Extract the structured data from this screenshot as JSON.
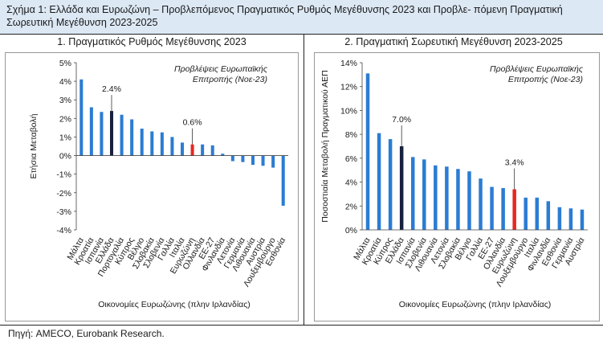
{
  "figure": {
    "title": "Σχήμα 1: Ελλάδα και Ευρωζώνη – Προβλεπόμενος Πραγματικός Ρυθμός Μεγέθυνσης 2023 και Προβλε- πόμενη Πραγματική Σωρευτική Μεγέθυνση 2023-2025",
    "source": "Πηγή: AMECO, Eurobank Research."
  },
  "colors": {
    "bar": "#2b7cd3",
    "greece": "#16213e",
    "eurozone": "#e8261e",
    "header_bg": "#dce8f4"
  },
  "chart_data": [
    {
      "type": "bar",
      "title": "1. Πραγματικός Ρυθμός Μεγέθυνσης 2023",
      "xlabel": "Οικονομίες Ευρωζώνης (πλην Ιρλανδίας)",
      "ylabel": "Ετήσια Μεταβολή",
      "note": "Προβλέψεις Ευρωπαϊκής Επιτροπής (Νοε-23)",
      "ylim": [
        -4,
        5
      ],
      "yticks": [
        5,
        4,
        3,
        2,
        1,
        0,
        -1,
        -2,
        -3,
        -4
      ],
      "ytick_labels": [
        "5%",
        "4%",
        "3%",
        "2%",
        "1%",
        "0%",
        "-1%",
        "-2%",
        "-3%",
        "-4%"
      ],
      "categories": [
        "Μάλτα",
        "Κροατία",
        "Ισπανία",
        "Ελλάδα",
        "Πορτογαλία",
        "Κύπρος",
        "Βέλγιο",
        "Σλοβακία",
        "Σλοβενία",
        "Γαλλία",
        "Ιταλία",
        "Ευρωζώνη",
        "Ολλανδία",
        "ΕΕ-27",
        "Φινλανδία",
        "Λετονία",
        "Γερμανία",
        "Λιθουανία",
        "Αυστρία",
        "Λουξεμβούργο",
        "Εσθονία"
      ],
      "values": [
        4.1,
        2.6,
        2.35,
        2.4,
        2.2,
        1.95,
        1.45,
        1.3,
        1.25,
        1.0,
        0.7,
        0.6,
        0.6,
        0.55,
        0.1,
        -0.3,
        -0.35,
        -0.5,
        -0.55,
        -0.65,
        -2.7
      ],
      "highlight": {
        "Ελλάδα": "greece",
        "Ευρωζώνη": "eurozone"
      },
      "data_labels": {
        "Ελλάδα": "2.4%",
        "Ευρωζώνη": "0.6%"
      },
      "grid": false
    },
    {
      "type": "bar",
      "title": "2. Πραγματική Σωρευτική Μεγέθυνση 2023-2025",
      "xlabel": "Οικονομίες Ευρωζώνης (πλην Ιρλανδίας)",
      "ylabel": "Ποσοστιαία Μεταβολή Πραγματικού ΑΕΠ",
      "note": "Προβλέψεις Ευρωπαϊκής Επιτροπής (Νοε-23)",
      "ylim": [
        0,
        14
      ],
      "yticks": [
        14,
        12,
        10,
        8,
        6,
        4,
        2,
        0
      ],
      "ytick_labels": [
        "14%",
        "12%",
        "10%",
        "8%",
        "6%",
        "4%",
        "2%",
        "0%"
      ],
      "categories": [
        "Μάλτα",
        "Κροατία",
        "Κύπρος",
        "Ελλάδα",
        "Ισπανία",
        "Σλοβενία",
        "Λιθουανία",
        "Λετονία",
        "Σλοβακία",
        "Βέλγιο",
        "Γαλλία",
        "ΕΕ-27",
        "Ολλανδία",
        "Ευρωζώνη",
        "Λουξεμβούργο",
        "Ιταλία",
        "Φινλανδία",
        "Εσθονία",
        "Γερμανία",
        "Αυστρία"
      ],
      "values": [
        13.1,
        8.1,
        7.6,
        7.0,
        6.1,
        5.9,
        5.4,
        5.3,
        5.1,
        4.9,
        4.3,
        3.6,
        3.5,
        3.4,
        2.7,
        2.7,
        2.4,
        1.9,
        1.8,
        1.7
      ],
      "highlight": {
        "Ελλάδα": "greece",
        "Ευρωζώνη": "eurozone"
      },
      "data_labels": {
        "Ελλάδα": "7.0%",
        "Ευρωζώνη": "3.4%"
      },
      "grid": false
    }
  ]
}
